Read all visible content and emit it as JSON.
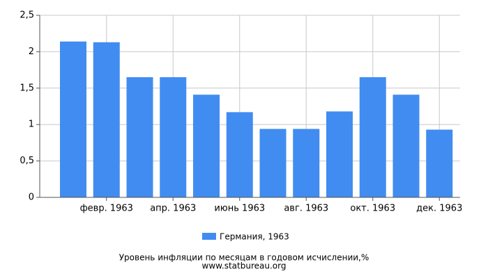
{
  "chart_data": {
    "type": "bar",
    "categories": [
      null,
      "февр. 1963",
      null,
      "апр. 1963",
      null,
      "июнь 1963",
      null,
      "авг. 1963",
      null,
      "окт. 1963",
      null,
      "дек. 1963"
    ],
    "series": [
      {
        "name": "Германия, 1963",
        "color": "#418cf0",
        "values": [
          2.14,
          2.13,
          1.65,
          1.65,
          1.41,
          1.17,
          0.94,
          0.94,
          1.18,
          1.65,
          1.41,
          0.93
        ]
      }
    ],
    "ylim": [
      0,
      2.5
    ],
    "yticks": [
      0,
      {
        "value": 0.5,
        "label": "0,5"
      },
      1,
      {
        "value": 1.5,
        "label": "1,5"
      },
      2,
      {
        "value": 2.5,
        "label": "2,5"
      }
    ],
    "grid": true,
    "legend": "bottom",
    "x_label": "Уровень инфляции по месяцам в годовом исчислении,%",
    "source": "www.statbureau.org"
  }
}
